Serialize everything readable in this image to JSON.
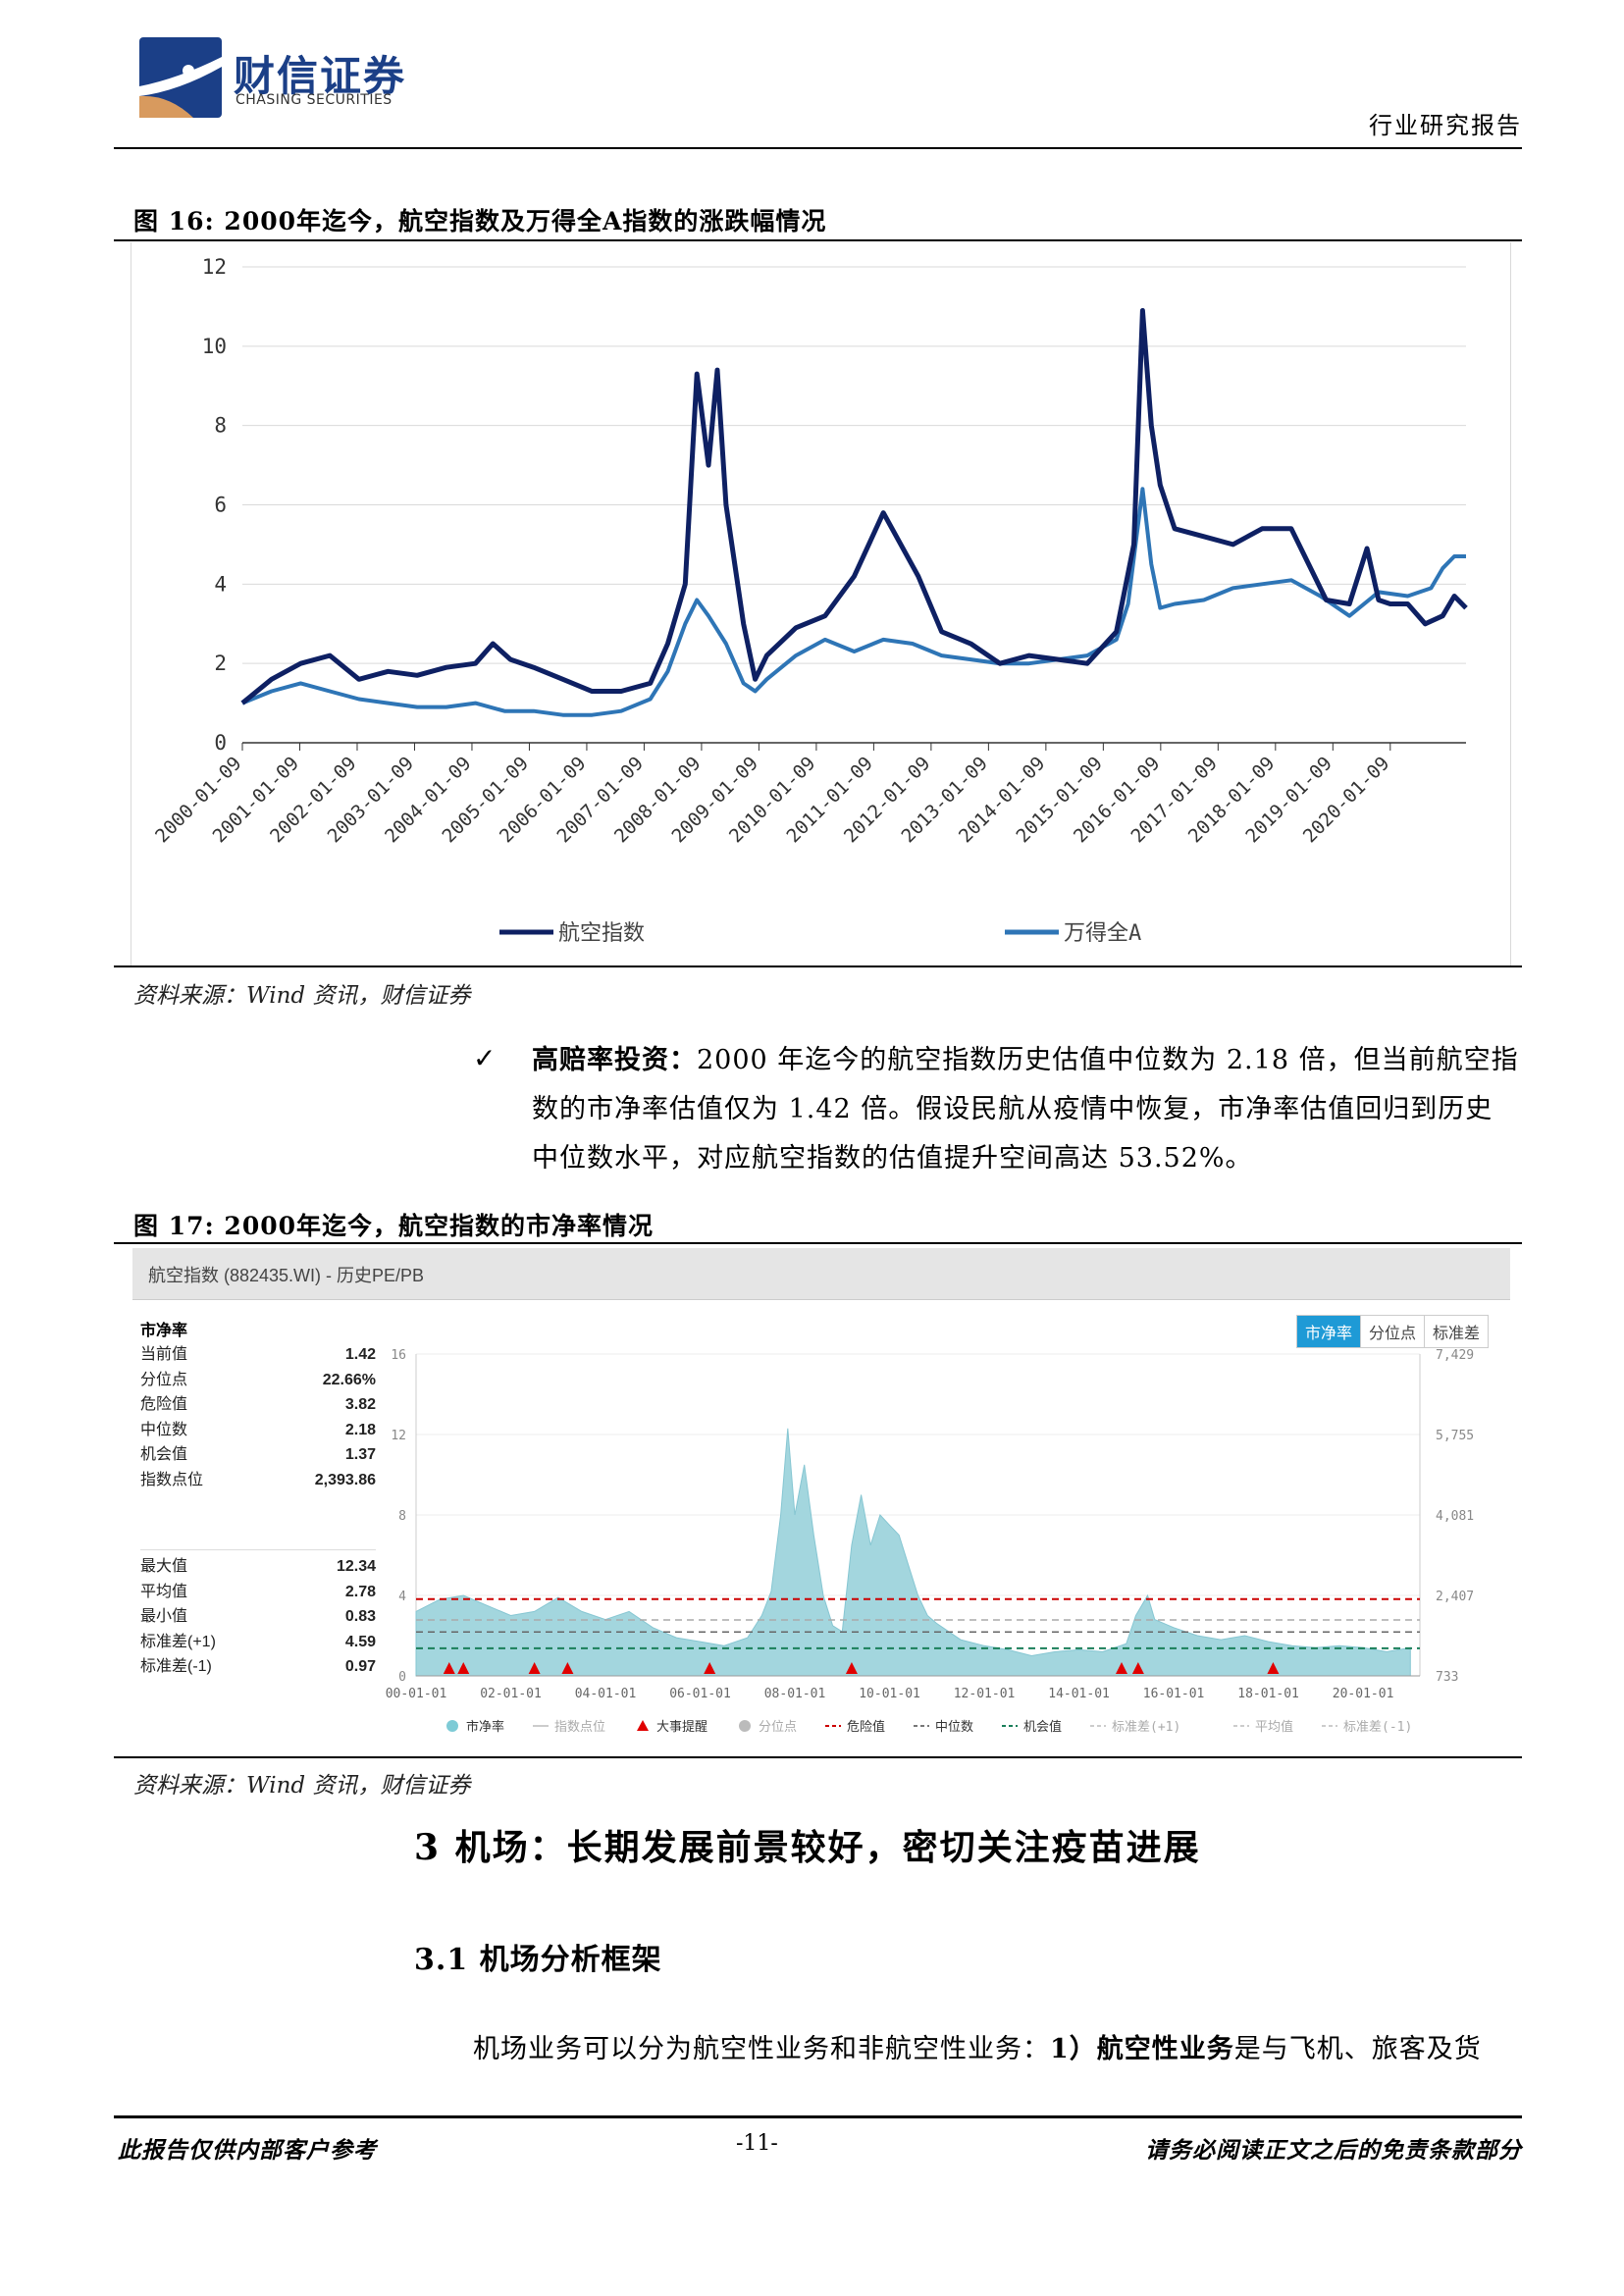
{
  "header": {
    "logo_cn": "财信证券",
    "logo_en": "CHASING SECURITIES",
    "report_type": "行业研究报告"
  },
  "figure16": {
    "title": "图 16:  2000年迄今，航空指数及万得全A指数的涨跌幅情况",
    "source": "资料来源：Wind 资讯，财信证券",
    "chart_data": {
      "type": "line",
      "x_ticks": [
        "2000-01-09",
        "2001-01-09",
        "2002-01-09",
        "2003-01-09",
        "2004-01-09",
        "2005-01-09",
        "2006-01-09",
        "2007-01-09",
        "2008-01-09",
        "2009-01-09",
        "2010-01-09",
        "2011-01-09",
        "2012-01-09",
        "2013-01-09",
        "2014-01-09",
        "2015-01-09",
        "2016-01-09",
        "2017-01-09",
        "2018-01-09",
        "2019-01-09",
        "2020-01-09"
      ],
      "y_ticks": [
        "0",
        "2",
        "4",
        "6",
        "8",
        "10",
        "12"
      ],
      "ylim": [
        0,
        12
      ],
      "series": [
        {
          "name": "航空指数",
          "color": "#0e2063",
          "x": [
            2000.0,
            2000.5,
            2001.0,
            2001.5,
            2002.0,
            2002.5,
            2003.0,
            2003.5,
            2004.0,
            2004.3,
            2004.6,
            2005.0,
            2005.5,
            2006.0,
            2006.5,
            2007.0,
            2007.3,
            2007.6,
            2007.8,
            2008.0,
            2008.15,
            2008.3,
            2008.45,
            2008.6,
            2008.8,
            2009.0,
            2009.5,
            2010.0,
            2010.5,
            2011.0,
            2011.3,
            2011.6,
            2012.0,
            2012.5,
            2013.0,
            2013.5,
            2014.0,
            2014.5,
            2015.0,
            2015.3,
            2015.45,
            2015.6,
            2015.75,
            2016.0,
            2016.5,
            2017.0,
            2017.5,
            2018.0,
            2018.3,
            2018.6,
            2019.0,
            2019.3,
            2019.5,
            2019.7,
            2020.0,
            2020.3,
            2020.6,
            2020.8,
            2021.0
          ],
          "y": [
            1.0,
            1.6,
            2.0,
            2.2,
            1.6,
            1.8,
            1.7,
            1.9,
            2.0,
            2.5,
            2.1,
            1.9,
            1.6,
            1.3,
            1.3,
            1.5,
            2.5,
            4.0,
            9.3,
            7.0,
            9.4,
            6.0,
            4.5,
            3.0,
            1.6,
            2.2,
            2.9,
            3.2,
            4.2,
            5.8,
            5.0,
            4.2,
            2.8,
            2.5,
            2.0,
            2.2,
            2.1,
            2.0,
            2.8,
            5.0,
            10.9,
            8.0,
            6.5,
            5.4,
            5.2,
            5.0,
            5.4,
            5.4,
            4.5,
            3.6,
            3.5,
            4.9,
            3.6,
            3.5,
            3.5,
            3.0,
            3.2,
            3.7,
            3.4
          ]
        },
        {
          "name": "万得全A",
          "color": "#2e75b6",
          "x": [
            2000.0,
            2000.5,
            2001.0,
            2001.5,
            2002.0,
            2002.5,
            2003.0,
            2003.5,
            2004.0,
            2004.5,
            2005.0,
            2005.5,
            2006.0,
            2006.5,
            2007.0,
            2007.3,
            2007.6,
            2007.8,
            2008.0,
            2008.3,
            2008.6,
            2008.8,
            2009.0,
            2009.5,
            2010.0,
            2010.5,
            2011.0,
            2011.5,
            2012.0,
            2012.5,
            2013.0,
            2013.5,
            2014.0,
            2014.5,
            2015.0,
            2015.2,
            2015.45,
            2015.6,
            2015.75,
            2016.0,
            2016.5,
            2017.0,
            2017.5,
            2018.0,
            2018.5,
            2019.0,
            2019.5,
            2020.0,
            2020.4,
            2020.6,
            2020.8,
            2021.0
          ],
          "y": [
            1.0,
            1.3,
            1.5,
            1.3,
            1.1,
            1.0,
            0.9,
            0.9,
            1.0,
            0.8,
            0.8,
            0.7,
            0.7,
            0.8,
            1.1,
            1.8,
            3.0,
            3.6,
            3.2,
            2.5,
            1.5,
            1.3,
            1.6,
            2.2,
            2.6,
            2.3,
            2.6,
            2.5,
            2.2,
            2.1,
            2.0,
            2.0,
            2.1,
            2.2,
            2.6,
            3.5,
            6.4,
            4.5,
            3.4,
            3.5,
            3.6,
            3.9,
            4.0,
            4.1,
            3.7,
            3.2,
            3.8,
            3.7,
            3.9,
            4.4,
            4.7,
            4.7
          ]
        }
      ],
      "legend": "bottom"
    }
  },
  "bullet": {
    "check": "✓",
    "title": "高赔率投资：",
    "text1": "2000 年迄今的航空指数历史估值中位数为 2.18 倍，但当前航空指",
    "text2": "数的市净率估值仅为 1.42 倍。假设民航从疫情中恢复，市净率估值回归到历史",
    "text3": "中位数水平，对应航空指数的估值提升空间高达 53.52%。"
  },
  "figure17": {
    "title": "图 17:  2000年迄今，航空指数的市净率情况",
    "source": "资料来源：Wind 资讯，财信证券",
    "panel_title": "航空指数 (882435.WI) - 历史PE/PB",
    "tabs": [
      "市净率",
      "分位点",
      "标准差"
    ],
    "stats_header": "市净率",
    "stats_group1": [
      {
        "label": "当前值",
        "value": "1.42"
      },
      {
        "label": "分位点",
        "value": "22.66%"
      },
      {
        "label": "危险值",
        "value": "3.82"
      },
      {
        "label": "中位数",
        "value": "2.18"
      },
      {
        "label": "机会值",
        "value": "1.37"
      },
      {
        "label": "指数点位",
        "value": "2,393.86"
      }
    ],
    "stats_group2": [
      {
        "label": "最大值",
        "value": "12.34"
      },
      {
        "label": "平均值",
        "value": "2.78"
      },
      {
        "label": "最小值",
        "value": "0.83"
      },
      {
        "label": "标准差(+1)",
        "value": "4.59"
      },
      {
        "label": "标准差(-1)",
        "value": "0.97"
      }
    ],
    "chart_data": {
      "type": "area",
      "y_left_ticks": [
        "0",
        "4",
        "8",
        "12",
        "16"
      ],
      "y_right_ticks": [
        "733",
        "2,407",
        "4,081",
        "5,755",
        "7,429"
      ],
      "x_ticks": [
        "00-01-01",
        "02-01-01",
        "04-01-01",
        "06-01-01",
        "08-01-01",
        "10-01-01",
        "12-01-01",
        "14-01-01",
        "16-01-01",
        "18-01-01",
        "20-01-01"
      ],
      "ylim": [
        0,
        16
      ],
      "x": [
        2000.0,
        2000.5,
        2001.0,
        2001.5,
        2002.0,
        2002.5,
        2003.0,
        2003.5,
        2004.0,
        2004.5,
        2005.0,
        2005.5,
        2006.0,
        2006.5,
        2007.0,
        2007.3,
        2007.5,
        2007.7,
        2007.85,
        2008.0,
        2008.2,
        2008.4,
        2008.6,
        2008.8,
        2009.0,
        2009.2,
        2009.4,
        2009.6,
        2009.8,
        2010.0,
        2010.2,
        2010.4,
        2010.6,
        2010.8,
        2011.0,
        2011.5,
        2012.0,
        2012.5,
        2013.0,
        2013.5,
        2014.0,
        2014.5,
        2015.0,
        2015.2,
        2015.45,
        2015.6,
        2016.0,
        2016.5,
        2017.0,
        2017.5,
        2018.0,
        2018.5,
        2019.0,
        2019.5,
        2020.0,
        2020.5,
        2021.0
      ],
      "y": [
        3.2,
        3.8,
        4.0,
        3.5,
        3.0,
        3.2,
        3.9,
        3.2,
        2.8,
        3.2,
        2.4,
        1.9,
        1.7,
        1.5,
        1.9,
        3.0,
        4.2,
        8.0,
        12.3,
        8.0,
        10.5,
        7.0,
        4.0,
        2.5,
        2.2,
        6.5,
        9.0,
        6.5,
        8.0,
        7.5,
        7.0,
        5.5,
        4.0,
        3.0,
        2.6,
        1.8,
        1.5,
        1.3,
        1.0,
        1.2,
        1.3,
        1.2,
        1.6,
        3.0,
        4.0,
        2.8,
        2.4,
        2.0,
        1.8,
        2.0,
        1.7,
        1.5,
        1.4,
        1.5,
        1.4,
        1.2,
        1.4
      ],
      "danger": 3.82,
      "median": 2.18,
      "opportunity": 1.37,
      "mean": 2.78,
      "events_x": [
        2000.7,
        2001.0,
        2002.5,
        2003.2,
        2006.2,
        2009.2,
        2014.9,
        2015.25,
        2018.1
      ],
      "legend": [
        {
          "label": "市净率",
          "kind": "dot",
          "color": "#7ecbd6"
        },
        {
          "label": "指数点位",
          "kind": "line",
          "color": "#cccccc"
        },
        {
          "label": "大事提醒",
          "kind": "triangle",
          "color": "#e00000"
        },
        {
          "label": "分位点",
          "kind": "dot",
          "color": "#bbbbbb"
        },
        {
          "label": "危险值",
          "kind": "dash",
          "color": "#cc0000"
        },
        {
          "label": "中位数",
          "kind": "dash",
          "color": "#777777"
        },
        {
          "label": "机会值",
          "kind": "dash",
          "color": "#1a7f5a"
        },
        {
          "label": "标准差(+1)",
          "kind": "dash",
          "color": "#cccccc"
        },
        {
          "label": "平均值",
          "kind": "dash",
          "color": "#cccccc"
        },
        {
          "label": "标准差(-1)",
          "kind": "dash",
          "color": "#cccccc"
        }
      ]
    }
  },
  "section3": {
    "heading": "3 机场：长期发展前景较好，密切关注疫苗进展",
    "sub": "3.1 机场分析框架",
    "para_prefix": "机场业务可以分为航空性业务和非航空性业务：",
    "para_b1": "1）航空性业务",
    "para_suffix": "是与飞机、旅客及货"
  },
  "footer": {
    "left": "此报告仅供内部客户参考",
    "page": "-11-",
    "right": "请务必阅读正文之后的免责条款部分"
  },
  "colors": {
    "navy": "#0e2063",
    "blue": "#2e75b6",
    "teal": "#9fd4dc"
  }
}
